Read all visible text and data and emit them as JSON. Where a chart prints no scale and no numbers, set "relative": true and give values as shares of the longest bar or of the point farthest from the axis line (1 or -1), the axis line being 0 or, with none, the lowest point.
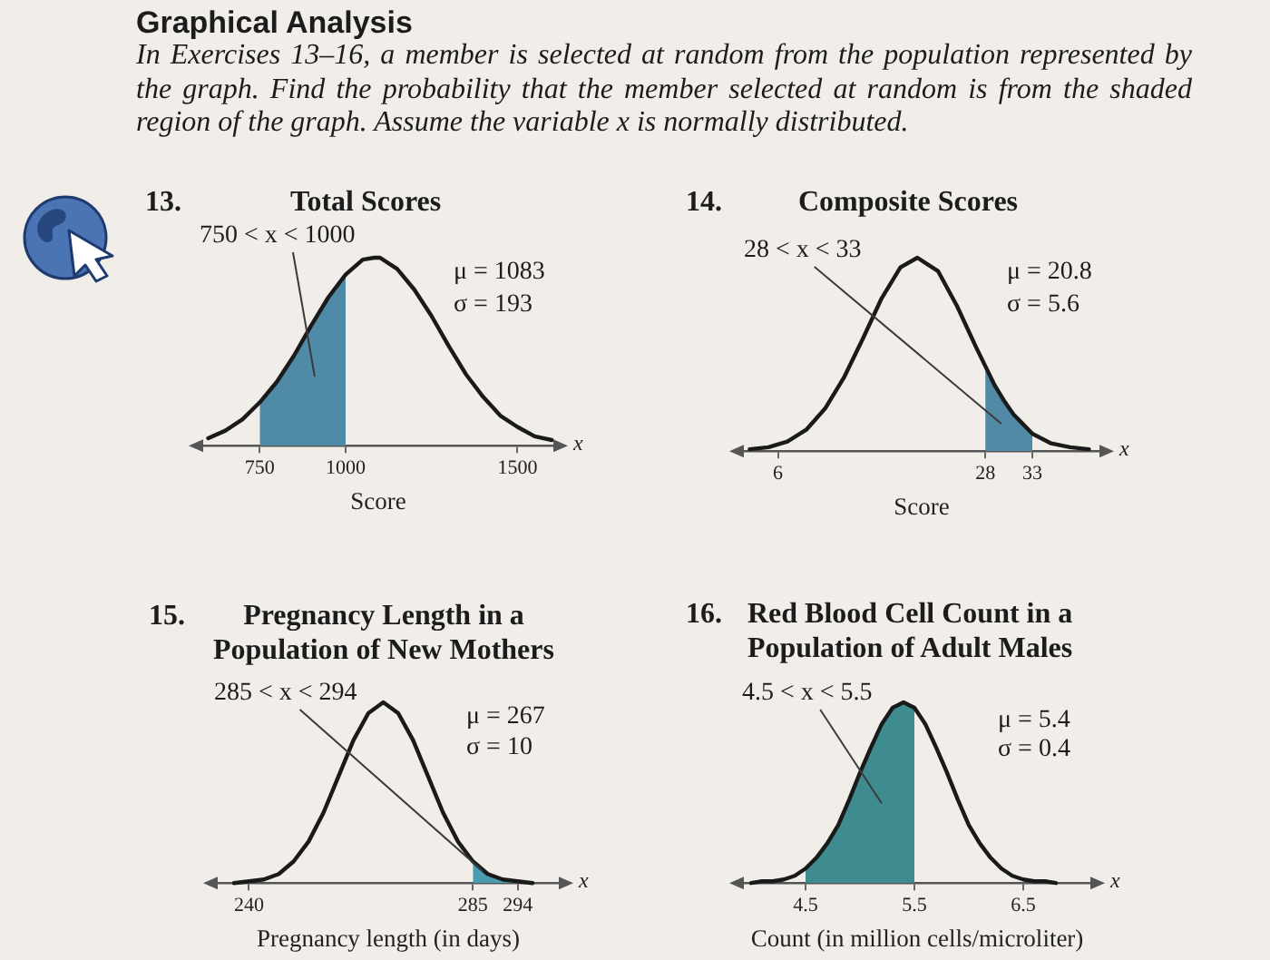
{
  "chart_data": [
    {
      "type": "other",
      "title": "Graphical Analysis",
      "subtitle": "In Exercises 13–16, a member is selected at random from the population represented by the graph. Find the probability that the member selected at random is from the shaded region of the graph. Assume the variable x is normally distributed."
    },
    {
      "type": "line",
      "title": "Total Scores",
      "xlabel": "Score",
      "relative": true,
      "xlim": [
        575,
        1615
      ],
      "xticks": [
        750,
        1000,
        1500
      ],
      "annotations": [
        "13.",
        "750 < x < 1000",
        "μ = 1083",
        "σ = 193",
        "x"
      ],
      "series": [
        {
          "type": "line",
          "color": "#1a1a1a",
          "x": [
            600,
            650,
            700,
            750,
            800,
            850,
            900,
            950,
            1000,
            1050,
            1083,
            1100,
            1150,
            1200,
            1250,
            1300,
            1350,
            1400,
            1450,
            1500,
            1550,
            1600
          ],
          "values": [
            0.04,
            0.08,
            0.14,
            0.23,
            0.34,
            0.48,
            0.64,
            0.79,
            0.91,
            0.99,
            1,
            1,
            0.94,
            0.83,
            0.69,
            0.53,
            0.38,
            0.26,
            0.16,
            0.1,
            0.05,
            0.03
          ]
        },
        {
          "type": "area",
          "color": "#4f8aa6",
          "x": [
            750,
            800,
            850,
            900,
            950,
            1000
          ],
          "values": [
            0.23,
            0.34,
            0.48,
            0.64,
            0.79,
            0.91
          ]
        }
      ]
    },
    {
      "type": "line",
      "title": "Composite Scores",
      "xlabel": "Score",
      "relative": true,
      "xlim": [
        2,
        40.5
      ],
      "xticks": [
        6,
        28,
        33
      ],
      "annotations": [
        "14.",
        "28 < x < 33",
        "μ = 20.8",
        "σ = 5.6",
        "x"
      ],
      "series": [
        {
          "type": "line",
          "color": "#1a1a1a",
          "x": [
            3,
            5,
            7,
            9,
            11,
            13,
            15,
            17,
            19,
            20.8,
            23,
            25,
            27,
            28,
            29,
            30,
            31,
            32,
            33,
            35,
            37,
            39
          ],
          "values": [
            0.01,
            0.02,
            0.05,
            0.11,
            0.22,
            0.38,
            0.58,
            0.79,
            0.95,
            1,
            0.93,
            0.75,
            0.54,
            0.44,
            0.34,
            0.26,
            0.19,
            0.14,
            0.09,
            0.04,
            0.02,
            0.01
          ]
        },
        {
          "type": "area",
          "color": "#5189a6",
          "x": [
            28,
            29,
            30,
            31,
            32,
            33
          ],
          "values": [
            0.44,
            0.34,
            0.26,
            0.19,
            0.14,
            0.09
          ]
        }
      ]
    },
    {
      "type": "line",
      "title": "Pregnancy Length in a Population of New Mothers",
      "xlabel": "Pregnancy length (in days)",
      "relative": true,
      "xlim": [
        233,
        303
      ],
      "xticks": [
        240,
        285,
        294
      ],
      "annotations": [
        "15.",
        "285 < x < 294",
        "μ = 267",
        "σ = 10",
        "x"
      ],
      "series": [
        {
          "type": "line",
          "color": "#1a1a1a",
          "x": [
            237,
            240,
            243,
            246,
            249,
            252,
            255,
            258,
            261,
            264,
            267,
            270,
            273,
            276,
            279,
            282,
            285,
            288,
            291,
            294,
            297
          ],
          "values": [
            0,
            0.01,
            0.02,
            0.05,
            0.12,
            0.23,
            0.39,
            0.59,
            0.79,
            0.94,
            1,
            0.94,
            0.79,
            0.59,
            0.39,
            0.23,
            0.12,
            0.05,
            0.02,
            0.01,
            0
          ]
        },
        {
          "type": "area",
          "color": "#4a9cb2",
          "x": [
            285,
            288,
            291,
            294
          ],
          "values": [
            0.12,
            0.05,
            0.02,
            0.01
          ]
        }
      ]
    },
    {
      "type": "line",
      "title": "Red Blood Cell Count in a Population of Adult Males",
      "xlabel": "Count (in million cells/microliter)",
      "relative": true,
      "xlim": [
        3.9,
        7.15
      ],
      "xticks": [
        4.5,
        5.5,
        6.5
      ],
      "annotations": [
        "16.",
        "4.5 < x < 5.5",
        "μ = 5.4",
        "σ = 0.4",
        "x"
      ],
      "series": [
        {
          "type": "line",
          "color": "#1a1a1a",
          "x": [
            4.0,
            4.1,
            4.2,
            4.3,
            4.4,
            4.5,
            4.6,
            4.7,
            4.8,
            4.9,
            5.0,
            5.1,
            5.2,
            5.3,
            5.4,
            5.5,
            5.6,
            5.7,
            5.8,
            5.9,
            6.0,
            6.1,
            6.2,
            6.3,
            6.4,
            6.5,
            6.6,
            6.7,
            6.8
          ],
          "values": [
            0,
            0.01,
            0.01,
            0.02,
            0.04,
            0.08,
            0.14,
            0.22,
            0.32,
            0.46,
            0.61,
            0.75,
            0.88,
            0.97,
            1,
            0.97,
            0.88,
            0.75,
            0.61,
            0.46,
            0.32,
            0.22,
            0.14,
            0.08,
            0.04,
            0.02,
            0.01,
            0.01,
            0
          ]
        },
        {
          "type": "area",
          "color": "#3f8c90",
          "x": [
            4.5,
            4.6,
            4.7,
            4.8,
            4.9,
            5.0,
            5.1,
            5.2,
            5.3,
            5.4,
            5.5
          ],
          "values": [
            0.08,
            0.14,
            0.22,
            0.32,
            0.46,
            0.61,
            0.75,
            0.88,
            0.97,
            1,
            0.97
          ]
        }
      ]
    }
  ]
}
